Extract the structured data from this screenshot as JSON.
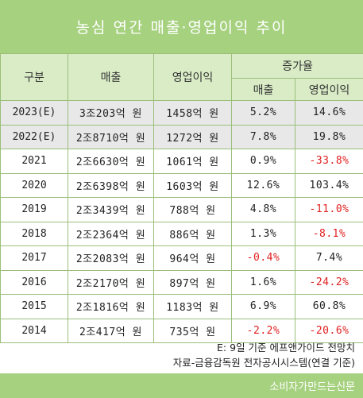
{
  "title": "농심 연간 매출·영업이익 추이",
  "headers": {
    "period": "구분",
    "sales": "매출",
    "operating_profit": "영업이익",
    "growth_rate": "증가율",
    "growth_sales": "매출",
    "growth_op": "영업이익"
  },
  "rows": [
    {
      "year": "2023(E)",
      "sales": "3조203억 원",
      "op": "1458억 원",
      "sales_growth": "5.2%",
      "op_growth": "14.6%"
    },
    {
      "year": "2022(E)",
      "sales": "2조8710억 원",
      "op": "1272억 원",
      "sales_growth": "7.8%",
      "op_growth": "19.8%"
    },
    {
      "year": "2021",
      "sales": "2조6630억 원",
      "op": "1061억 원",
      "sales_growth": "0.9%",
      "op_growth": "-33.8%"
    },
    {
      "year": "2020",
      "sales": "2조6398억 원",
      "op": "1603억 원",
      "sales_growth": "12.6%",
      "op_growth": "103.4%"
    },
    {
      "year": "2019",
      "sales": "2조3439억 원",
      "op": "788억 원",
      "sales_growth": "4.8%",
      "op_growth": "-11.0%"
    },
    {
      "year": "2018",
      "sales": "2조2364억 원",
      "op": "886억 원",
      "sales_growth": "1.3%",
      "op_growth": "-8.1%"
    },
    {
      "year": "2017",
      "sales": "2조2083억 원",
      "op": "964억 원",
      "sales_growth": "-0.4%",
      "op_growth": "7.4%"
    },
    {
      "year": "2016",
      "sales": "2조2170억 원",
      "op": "897억 원",
      "sales_growth": "1.6%",
      "op_growth": "-24.2%"
    },
    {
      "year": "2015",
      "sales": "2조1816억 원",
      "op": "1183억 원",
      "sales_growth": "6.9%",
      "op_growth": "60.8%"
    },
    {
      "year": "2014",
      "sales": "2조417억 원",
      "op": "735억 원",
      "sales_growth": "-2.2%",
      "op_growth": "-20.6%"
    }
  ],
  "notes": {
    "line1": "E: 9일 기준 에프앤가이드 전망치",
    "line2": "자료-금융감독원 전자공시시스템(연결 기준)"
  },
  "footer": "소비자가만드는신문",
  "colors": {
    "header_green": "#a6d17f",
    "subheader_green": "#d9ecc6",
    "border_green": "#9bbf7a",
    "projection_row_gray": "#e8e8e8",
    "negative_red": "#e02020"
  }
}
